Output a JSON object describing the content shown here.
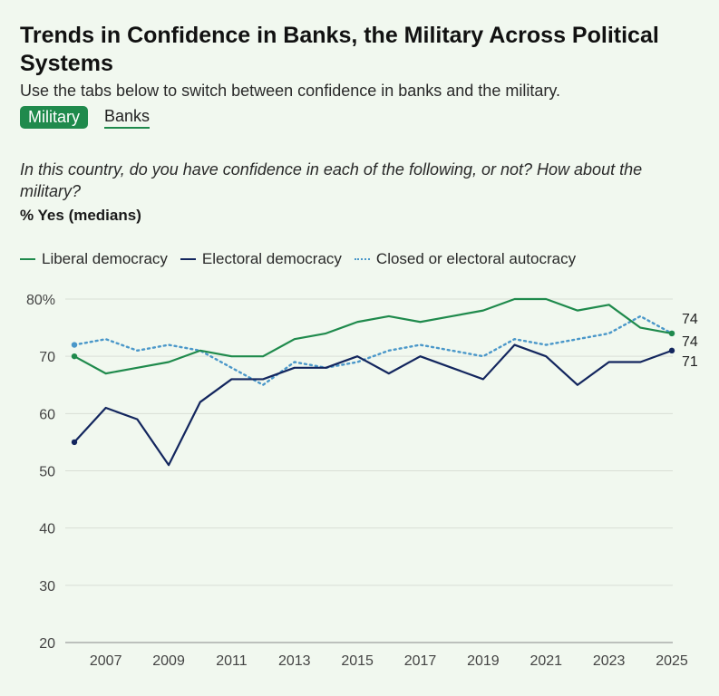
{
  "title": "Trends in Confidence in Banks, the Military Across Political Systems",
  "subtitle": "Use the tabs below to switch between confidence in banks and the military.",
  "tabs": [
    {
      "label": "Military",
      "active": true
    },
    {
      "label": "Banks",
      "active": false
    }
  ],
  "question": "In this country, do you have confidence in each of the following, or not? How about the military?",
  "unit_label": "% Yes (medians)",
  "colors": {
    "liberal": "#1f8a4c",
    "electoral": "#13265e",
    "closed": "#4a97c9",
    "tab_active": "#1f8a4c",
    "background": "#f1f8ef"
  },
  "chart_data": {
    "type": "line",
    "x": [
      2006,
      2007,
      2008,
      2009,
      2010,
      2011,
      2012,
      2013,
      2014,
      2015,
      2016,
      2017,
      2018,
      2019,
      2020,
      2021,
      2022,
      2023,
      2024,
      2025
    ],
    "x_ticks": [
      "2007",
      "2009",
      "2011",
      "2013",
      "2015",
      "2017",
      "2019",
      "2021",
      "2023",
      "2025"
    ],
    "y_ticks": [
      "80%",
      "70",
      "60",
      "50",
      "40",
      "30",
      "20"
    ],
    "ylim": [
      20,
      80
    ],
    "grid": true,
    "legend_position": "top-left",
    "series": [
      {
        "name": "Liberal democracy",
        "style": "solid",
        "color": "#1f8a4c",
        "values": [
          70,
          67,
          68,
          69,
          71,
          70,
          70,
          73,
          74,
          76,
          77,
          76,
          77,
          78,
          80,
          80,
          78,
          79,
          75,
          74
        ],
        "end_label": "74"
      },
      {
        "name": "Electoral democracy",
        "style": "solid",
        "color": "#13265e",
        "values": [
          55,
          61,
          59,
          51,
          62,
          66,
          66,
          68,
          68,
          70,
          67,
          70,
          68,
          66,
          72,
          70,
          65,
          69,
          69,
          71
        ],
        "end_label": "71"
      },
      {
        "name": "Closed or electoral autocracy",
        "style": "dotted",
        "color": "#4a97c9",
        "values": [
          72,
          73,
          71,
          72,
          71,
          68,
          65,
          69,
          68,
          69,
          71,
          72,
          71,
          70,
          73,
          72,
          73,
          74,
          77,
          74
        ],
        "end_label": "74"
      }
    ]
  }
}
